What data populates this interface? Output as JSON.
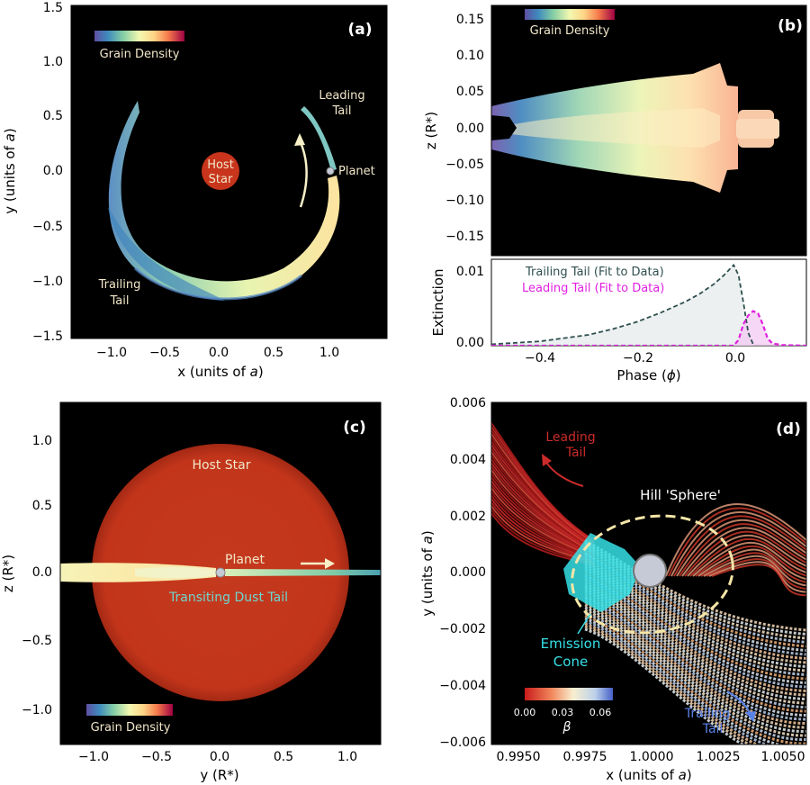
{
  "panels": {
    "a": {
      "letter": "(a)",
      "xlabel_pre": "x (units of ",
      "xlabel_italic": "a",
      "xlabel_post": ")",
      "ylabel_pre": "y (units of ",
      "ylabel_italic": "a",
      "ylabel_post": ")",
      "xticks": [
        "−1.0",
        "−0.5",
        "0.0",
        "0.5",
        "1.0"
      ],
      "yticks": [
        "1.5",
        "1.0",
        "0.5",
        "0.0",
        "−0.5",
        "−1.0",
        "−1.5"
      ],
      "colorbar_label": "Grain Density",
      "host_star_line1": "Host",
      "host_star_line2": "Star",
      "planet_label": "Planet",
      "leading_line1": "Leading",
      "leading_line2": "Tail",
      "trailing_line1": "Trailing",
      "trailing_line2": "Tail"
    },
    "b": {
      "letter": "(b)",
      "ylabel_top": "z (R*)",
      "ylabel_bottom": "Extinction",
      "xlabel_pre": "Phase (",
      "xlabel_italic": "ϕ",
      "xlabel_post": ")",
      "yticks_top": [
        "0.15",
        "0.10",
        "0.05",
        "0.00",
        "−0.05",
        "−0.10",
        "−0.15"
      ],
      "yticks_bottom": [
        "0.01",
        "0.00"
      ],
      "xticks": [
        "−0.4",
        "−0.2",
        "0.0"
      ],
      "colorbar_label": "Grain Density"
    },
    "c": {
      "letter": "(c)",
      "xlabel": "y (R*)",
      "ylabel": "z (R*)",
      "xticks": [
        "−1.0",
        "−0.5",
        "0.0",
        "0.5",
        "1.0"
      ],
      "yticks": [
        "1.0",
        "0.5",
        "0.0",
        "−0.5",
        "−1.0"
      ],
      "host_star_label": "Host Star",
      "planet_label": "Planet",
      "tail_label": "Transiting Dust Tail",
      "colorbar_label": "Grain Density"
    },
    "d": {
      "letter": "(d)",
      "xlabel_pre": "x (units of ",
      "xlabel_italic": "a",
      "xlabel_post": ")",
      "ylabel_pre": "y (units of ",
      "ylabel_italic": "a",
      "ylabel_post": ")",
      "xticks": [
        "0.9950",
        "0.9975",
        "1.0000",
        "1.0025",
        "1.0050"
      ],
      "yticks": [
        "0.006",
        "0.004",
        "0.002",
        "0.000",
        "−0.002",
        "−0.004",
        "−0.006"
      ],
      "leading_line1": "Leading",
      "leading_line2": "Tail",
      "trailing_line1": "Trailing",
      "trailing_line2": "Tail",
      "hill_label": "Hill 'Sphere'",
      "emission_line1": "Emission",
      "emission_line2": "Cone",
      "beta_ticks": [
        "0.00",
        "0.03",
        "0.06"
      ],
      "beta_label": "β"
    }
  },
  "chart_data": [
    {
      "panel": "a",
      "type": "heatmap",
      "xlabel": "x (units of a)",
      "ylabel": "y (units of a)",
      "xlim": [
        -1.45,
        1.45
      ],
      "ylim": [
        -1.55,
        1.55
      ],
      "colorbar": "Grain Density",
      "annotations": [
        "Host Star",
        "Planet",
        "Leading Tail",
        "Trailing Tail"
      ],
      "host_star": {
        "x": 0.0,
        "y": 0.0
      },
      "planet": {
        "x": 1.0,
        "y": 0.0
      }
    },
    {
      "panel": "b-top",
      "type": "heatmap",
      "ylabel": "z (R*)",
      "xlim": [
        -0.5,
        0.15
      ],
      "ylim": [
        -0.175,
        0.175
      ],
      "colorbar": "Grain Density"
    },
    {
      "panel": "b-bottom",
      "type": "line",
      "xlabel": "Phase (ϕ)",
      "ylabel": "Extinction",
      "xlim": [
        -0.5,
        0.15
      ],
      "ylim": [
        0,
        0.012
      ],
      "series": [
        {
          "name": "Trailing Tail (Fit to Data)",
          "color": "#2f4f4f",
          "x": [
            -0.5,
            -0.4,
            -0.3,
            -0.25,
            -0.2,
            -0.15,
            -0.1,
            -0.07,
            -0.04,
            -0.02,
            0.0,
            0.01,
            0.02,
            0.03,
            0.04
          ],
          "y": [
            0.0002,
            0.0006,
            0.0015,
            0.0023,
            0.0033,
            0.0046,
            0.0061,
            0.0072,
            0.0086,
            0.0098,
            0.0112,
            0.0098,
            0.006,
            0.0018,
            0.0002
          ]
        },
        {
          "name": "Leading Tail (Fit to Data)",
          "color": "#e020e0",
          "x": [
            -0.5,
            0.0,
            0.01,
            0.02,
            0.03,
            0.04,
            0.05,
            0.06,
            0.07,
            0.08,
            0.1,
            0.15
          ],
          "y": [
            0.0,
            0.0,
            0.0008,
            0.003,
            0.0042,
            0.0048,
            0.0045,
            0.003,
            0.001,
            0.0003,
            0.0001,
            0.0
          ]
        }
      ]
    },
    {
      "panel": "c",
      "type": "heatmap",
      "xlabel": "y (R*)",
      "ylabel": "z (R*)",
      "xlim": [
        -1.25,
        1.25
      ],
      "ylim": [
        -1.2,
        1.25
      ],
      "colorbar": "Grain Density",
      "annotations": [
        "Host Star",
        "Planet",
        "Transiting Dust Tail"
      ]
    },
    {
      "panel": "d",
      "type": "scatter",
      "xlabel": "x (units of a)",
      "ylabel": "y (units of a)",
      "xlim": [
        0.9945,
        1.0059
      ],
      "ylim": [
        -0.006,
        0.006
      ],
      "colorbar": {
        "label": "β",
        "range": [
          0.0,
          0.07
        ],
        "ticks": [
          0.0,
          0.03,
          0.06
        ]
      },
      "annotations": [
        "Leading Tail",
        "Trailing Tail",
        "Hill 'Sphere'",
        "Emission Cone"
      ]
    }
  ],
  "colors": {
    "plot_bg": "#000000",
    "star": "#c8351c",
    "planet": "#c6cad6",
    "emission": "#35e0e6",
    "hill": "#f5e6a8",
    "annot_light": "#f2e7c9",
    "leading_red": "#cc2b2b",
    "trailing_blue": "#5a82e6",
    "trail_line": "#2f4f4f",
    "lead_line": "#e020e0"
  }
}
